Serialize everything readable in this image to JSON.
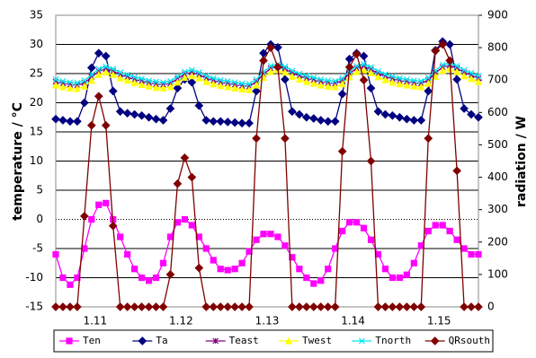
{
  "chart_data": {
    "type": "line",
    "y_label": "temperature / °C",
    "y2_label": "radiation / W",
    "x": [
      0,
      2,
      4,
      6,
      8,
      10,
      12,
      14,
      16,
      18,
      20,
      22,
      24,
      26,
      28,
      30,
      32,
      34,
      36,
      38,
      40,
      42,
      44,
      46,
      48,
      50,
      52,
      54,
      56,
      58,
      60,
      62,
      64,
      66,
      68,
      70,
      72,
      74,
      76,
      78,
      80,
      82,
      84,
      86,
      88,
      90,
      92,
      94,
      96,
      98,
      100,
      102,
      104,
      106,
      108,
      110,
      112,
      114,
      116,
      118
    ],
    "xlim": [
      0,
      118
    ],
    "xticks": [
      {
        "value": 11,
        "label": "1.11"
      },
      {
        "value": 35,
        "label": "1.12"
      },
      {
        "value": 59,
        "label": "1.13"
      },
      {
        "value": 83,
        "label": "1.14"
      },
      {
        "value": 107,
        "label": "1.15"
      }
    ],
    "ylim": [
      -15,
      35
    ],
    "yticks": [
      -15,
      -10,
      -5,
      0,
      5,
      10,
      15,
      20,
      25,
      30,
      35
    ],
    "y2lim": [
      0,
      900
    ],
    "y2ticks": [
      0,
      100,
      200,
      300,
      400,
      500,
      600,
      700,
      800,
      900
    ],
    "grid": true,
    "legend": "bottom",
    "series": [
      {
        "name": "Ten",
        "color": "#ff00ff",
        "marker": "square",
        "values": [
          -6,
          -10,
          -11.2,
          -10,
          -5,
          0,
          2.5,
          2.8,
          0,
          -3,
          -6,
          -8.5,
          -10,
          -10.5,
          -10,
          -7.5,
          -3,
          -0.5,
          0,
          -1,
          -3,
          -5,
          -7,
          -8.5,
          -8.7,
          -8.5,
          -7.5,
          -5.5,
          -3.5,
          -2.5,
          -2.5,
          -3,
          -4.5,
          -6.5,
          -8.5,
          -10,
          -11,
          -10.5,
          -8.5,
          -5,
          -2,
          -0.5,
          -0.5,
          -1.5,
          -3.5,
          -6,
          -8.5,
          -10,
          -10,
          -9.5,
          -7.5,
          -4.5,
          -2,
          -1,
          -1,
          -2,
          -3.5,
          -5,
          -6,
          -6
        ]
      },
      {
        "name": "Ta",
        "color": "#000080",
        "marker": "diamond",
        "values": [
          17.2,
          17,
          16.8,
          16.8,
          20,
          26,
          28.5,
          28,
          22,
          18.5,
          18.2,
          18,
          17.8,
          17.5,
          17.2,
          17,
          19,
          22.5,
          24,
          23.5,
          19.5,
          17,
          16.8,
          16.8,
          16.7,
          16.6,
          16.5,
          16.5,
          22,
          28.5,
          30,
          29.5,
          24,
          18.5,
          18,
          17.5,
          17.3,
          17,
          16.8,
          16.8,
          21.5,
          27.5,
          28.5,
          28,
          22.5,
          18.5,
          18,
          17.8,
          17.5,
          17.2,
          17,
          17,
          22,
          29,
          30.5,
          30,
          24,
          19,
          18,
          17.5
        ]
      },
      {
        "name": "Teast",
        "color": "#800080",
        "marker": "star",
        "values": [
          23.6,
          23.3,
          23.1,
          23,
          23.4,
          24.4,
          25.4,
          25.8,
          25.4,
          24.8,
          24.4,
          24,
          23.7,
          23.4,
          23.2,
          23.1,
          23.3,
          24.1,
          24.9,
          25.2,
          24.8,
          24.2,
          23.8,
          23.5,
          23.3,
          23.1,
          22.9,
          22.8,
          23.6,
          24.9,
          25.9,
          26.2,
          25.8,
          25.1,
          24.6,
          24.2,
          23.9,
          23.6,
          23.4,
          23.3,
          23.8,
          25,
          25.9,
          26.2,
          25.7,
          25,
          24.5,
          24.1,
          23.8,
          23.6,
          23.4,
          23.3,
          23.9,
          25.1,
          26.1,
          26.4,
          25.9,
          25.2,
          24.7,
          24.2
        ]
      },
      {
        "name": "Twest",
        "color": "#ffff00",
        "marker": "triangle",
        "values": [
          23,
          22.7,
          22.5,
          22.4,
          22.8,
          23.8,
          24.8,
          25.2,
          24.8,
          24.2,
          23.8,
          23.4,
          23.1,
          22.8,
          22.6,
          22.5,
          22.7,
          23.5,
          24.3,
          24.6,
          24.2,
          23.6,
          23.2,
          22.9,
          22.7,
          22.5,
          22.3,
          22.2,
          23,
          24.3,
          25.3,
          25.6,
          25.2,
          24.5,
          24,
          23.6,
          23.3,
          23,
          22.8,
          22.7,
          23.2,
          24.4,
          25.3,
          25.6,
          25.1,
          24.4,
          23.9,
          23.5,
          23.2,
          23,
          22.8,
          22.7,
          23.3,
          24.5,
          25.5,
          25.8,
          25.3,
          24.6,
          24.1,
          23.6
        ]
      },
      {
        "name": "Tnorth",
        "color": "#00e5ee",
        "marker": "cross",
        "values": [
          24,
          23.7,
          23.5,
          23.4,
          23.8,
          24.8,
          25.8,
          26.2,
          25.8,
          25.2,
          24.8,
          24.4,
          24.1,
          23.8,
          23.6,
          23.5,
          23.7,
          24.5,
          25.3,
          25.6,
          25.2,
          24.6,
          24.2,
          23.9,
          23.7,
          23.5,
          23.3,
          23.2,
          24,
          25.3,
          26.3,
          26.6,
          26.2,
          25.5,
          25,
          24.6,
          24.3,
          24,
          23.8,
          23.7,
          24.2,
          25.4,
          26.3,
          26.6,
          26.1,
          25.4,
          24.9,
          24.5,
          24.2,
          24,
          23.8,
          23.7,
          24.3,
          25.5,
          26.5,
          26.8,
          26.3,
          25.6,
          25.1,
          24.6
        ]
      },
      {
        "name": "QRsouth",
        "color": "#800000",
        "marker": "diamond",
        "axis": "y2",
        "values": [
          0,
          0,
          0,
          0,
          280,
          560,
          650,
          560,
          250,
          0,
          0,
          0,
          0,
          0,
          0,
          0,
          100,
          380,
          460,
          400,
          120,
          0,
          0,
          0,
          0,
          0,
          0,
          0,
          520,
          760,
          800,
          740,
          520,
          0,
          0,
          0,
          0,
          0,
          0,
          0,
          480,
          740,
          780,
          700,
          450,
          0,
          0,
          0,
          0,
          0,
          0,
          0,
          520,
          790,
          810,
          760,
          420,
          0,
          0,
          0
        ]
      }
    ]
  }
}
